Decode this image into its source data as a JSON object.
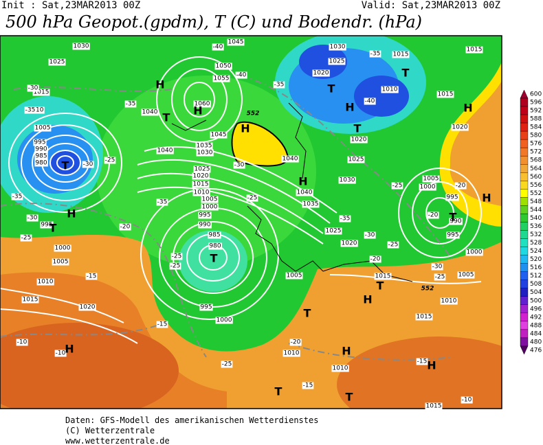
{
  "header": {
    "init": "Init : Sat,23MAR2013 00Z",
    "valid": "Valid: Sat,23MAR2013 00Z",
    "title": "500 hPa Geopot.(gpdm), T (C) und Bodendr. (hPa)"
  },
  "map": {
    "pressure_labels": [
      1030,
      1025,
      1015,
      1010,
      1005,
      995,
      990,
      985,
      980,
      995,
      1000,
      1005,
      1010,
      1015,
      1020,
      1045,
      1050,
      1055,
      1060,
      1040,
      1045,
      1040,
      1035,
      1030,
      1025,
      1020,
      1015,
      1010,
      1005,
      1000,
      995,
      990,
      985,
      980,
      995,
      1000,
      1005,
      1040,
      1040,
      1035,
      1030,
      1025,
      1020,
      1025,
      1020,
      1030,
      1025,
      1020,
      1015,
      1010,
      1015,
      1020,
      1015,
      1005,
      1000,
      995,
      990,
      995,
      1000,
      1005,
      1015,
      1010,
      1015,
      1010,
      1010,
      1015
    ],
    "height_labels": [
      552,
      552
    ],
    "temp_labels": [
      -30,
      -35,
      -30,
      -25,
      -35,
      -30,
      -25,
      -20,
      -35,
      -35,
      -40,
      -40,
      -35,
      -30,
      -25,
      -25,
      -25,
      -15,
      -15,
      -10,
      -10,
      -25,
      -20,
      -15,
      -15,
      -10,
      -35,
      -40,
      -35,
      -30,
      -25,
      -20,
      -25,
      -30,
      -20,
      -20,
      -25
    ],
    "centers": [
      "H",
      "H",
      "H",
      "T",
      "T",
      "T",
      "H",
      "H",
      "T",
      "H",
      "T",
      "T",
      "H",
      "T",
      "H",
      "T",
      "H",
      "T",
      "T",
      "H",
      "T",
      "T",
      "H",
      "H"
    ]
  },
  "colorbar": {
    "values": [
      600,
      596,
      592,
      588,
      584,
      580,
      576,
      572,
      568,
      564,
      560,
      556,
      552,
      548,
      544,
      540,
      536,
      532,
      528,
      524,
      520,
      516,
      512,
      508,
      504,
      500,
      496,
      492,
      488,
      484,
      480,
      476
    ],
    "colors": [
      "#a00030",
      "#b00020",
      "#c00018",
      "#d01010",
      "#e02010",
      "#e84018",
      "#f06020",
      "#f07828",
      "#f09030",
      "#f0a838",
      "#f8c030",
      "#f8d820",
      "#ffff00",
      "#a0e000",
      "#60d020",
      "#30c830",
      "#20d060",
      "#20d890",
      "#20e0c0",
      "#20d8e0",
      "#20b8f0",
      "#2090f0",
      "#2060f0",
      "#2040e0",
      "#2020c0",
      "#6020d0",
      "#a020d0",
      "#d020d0",
      "#e040e0",
      "#c020c0",
      "#8010a0",
      "#500060"
    ]
  },
  "footer": {
    "lines": [
      "Daten: GFS-Modell des amerikanischen Wetterdienstes",
      "(C) Wetterzentrale",
      "www.wetterzentrale.de"
    ]
  }
}
